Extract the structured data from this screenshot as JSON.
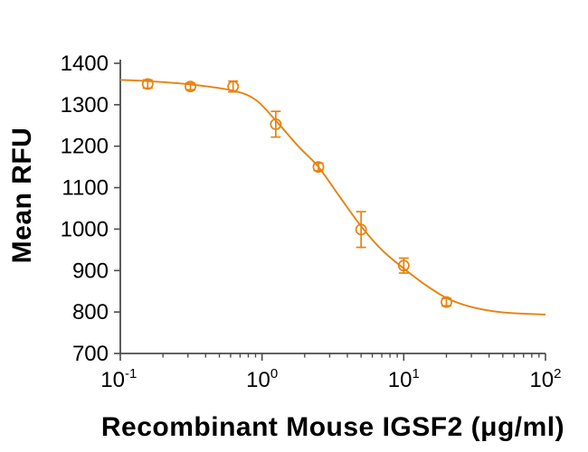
{
  "chart_data": {
    "type": "scatter",
    "subtype": "dose-response-curve",
    "title": "",
    "xlabel": "Recombinant Mouse IGSF2 (μg/ml)",
    "ylabel": "Mean RFU",
    "x_scale": "log10",
    "xlim": [
      0.1,
      100
    ],
    "ylim": [
      700,
      1400
    ],
    "grid": false,
    "legend": "none",
    "colors": {
      "series": "#E8820D",
      "axis": "#4A4A4A",
      "text": "#000000",
      "background": "#FFFFFF"
    },
    "y_ticks": [
      {
        "label": "700",
        "value": 700
      },
      {
        "label": "800",
        "value": 800
      },
      {
        "label": "900",
        "value": 900
      },
      {
        "label": "1000",
        "value": 1000
      },
      {
        "label": "1100",
        "value": 1100
      },
      {
        "label": "1200",
        "value": 1200
      },
      {
        "label": "1300",
        "value": 1300
      },
      {
        "label": "1400",
        "value": 1400
      }
    ],
    "x_ticks": [
      {
        "base": "10",
        "exponent": "-1",
        "value": 0.1
      },
      {
        "base": "10",
        "exponent": "0",
        "value": 1
      },
      {
        "base": "10",
        "exponent": "1",
        "value": 10
      },
      {
        "base": "10",
        "exponent": "2",
        "value": 100
      }
    ],
    "series": [
      {
        "name": "Mean RFU",
        "marker": "open-circle",
        "points": [
          {
            "x": 0.156,
            "y": 1350,
            "yerr": 10
          },
          {
            "x": 0.3125,
            "y": 1344,
            "yerr": 8
          },
          {
            "x": 0.625,
            "y": 1344,
            "yerr": 13
          },
          {
            "x": 1.25,
            "y": 1253,
            "yerr": 31
          },
          {
            "x": 2.5,
            "y": 1150,
            "yerr": 9
          },
          {
            "x": 5,
            "y": 999,
            "yerr": 43
          },
          {
            "x": 10,
            "y": 912,
            "yerr": 18
          },
          {
            "x": 20,
            "y": 824,
            "yerr": 9
          }
        ],
        "fit_curve": [
          [
            0.1,
            1360
          ],
          [
            0.156,
            1357
          ],
          [
            0.3125,
            1349
          ],
          [
            0.625,
            1334
          ],
          [
            0.9,
            1312
          ],
          [
            1.25,
            1262
          ],
          [
            1.8,
            1200
          ],
          [
            2.5,
            1150
          ],
          [
            3.5,
            1080
          ],
          [
            5,
            1007
          ],
          [
            7,
            950
          ],
          [
            10,
            905
          ],
          [
            14,
            867
          ],
          [
            20,
            834
          ],
          [
            30,
            812
          ],
          [
            50,
            799
          ],
          [
            100,
            794
          ]
        ]
      }
    ]
  }
}
